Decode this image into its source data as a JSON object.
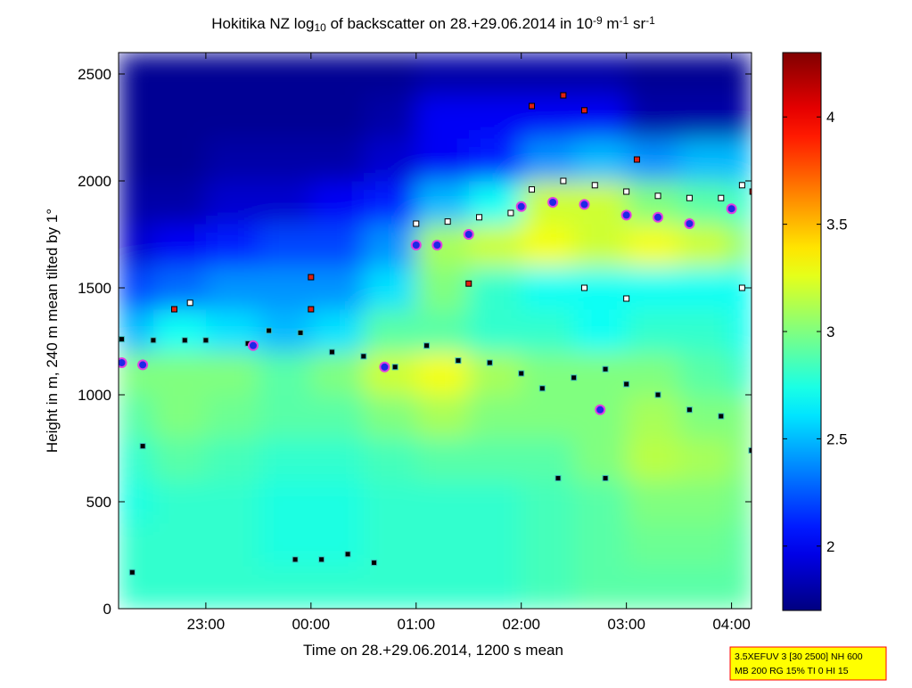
{
  "chart_data": {
    "type": "heatmap",
    "title": [
      "Hokitika NZ log",
      {
        "text": "10",
        "script": "sub"
      },
      " of backscatter on 28.+29.06.2014 in 10",
      {
        "text": "-9",
        "script": "sup"
      },
      " m",
      {
        "text": "-1",
        "script": "sup"
      },
      " sr",
      {
        "text": "-1",
        "script": "sup"
      }
    ],
    "xlabel": "Time on 28.+29.06.2014, 1200 s mean",
    "ylabel": "Height in m, 240 m mean tilted by 1°",
    "xlim": [
      22.17,
      28.19
    ],
    "ylim": [
      0,
      2600
    ],
    "xticks": [
      {
        "value": 23,
        "label": "23:00"
      },
      {
        "value": 24,
        "label": "00:00"
      },
      {
        "value": 25,
        "label": "01:00"
      },
      {
        "value": 26,
        "label": "02:00"
      },
      {
        "value": 27,
        "label": "03:00"
      },
      {
        "value": 28,
        "label": "04:00"
      }
    ],
    "yticks": [
      0,
      500,
      1000,
      1500,
      2000,
      2500
    ],
    "x_edges": [
      22.17,
      22.5,
      23,
      23.5,
      24,
      24.5,
      25,
      25.5,
      26,
      26.5,
      27,
      27.5,
      28,
      28.19
    ],
    "y_edges": [
      0,
      200,
      400,
      600,
      800,
      1000,
      1200,
      1400,
      1600,
      1800,
      2000,
      2200,
      2400,
      2600
    ],
    "z": [
      [
        2.8,
        2.8,
        2.8,
        2.8,
        2.8,
        2.8,
        2.8,
        2.8,
        2.85,
        2.9,
        2.9,
        2.9,
        2.9
      ],
      [
        2.8,
        2.8,
        2.8,
        2.75,
        2.75,
        2.8,
        2.8,
        2.8,
        2.85,
        2.9,
        2.95,
        2.95,
        2.9
      ],
      [
        2.75,
        2.8,
        2.8,
        2.75,
        2.75,
        2.8,
        2.8,
        2.8,
        2.85,
        2.9,
        3.0,
        3.0,
        2.95
      ],
      [
        2.8,
        2.9,
        2.85,
        2.8,
        2.8,
        2.85,
        2.9,
        2.9,
        2.9,
        3.0,
        3.15,
        3.1,
        3.0
      ],
      [
        2.9,
        3.0,
        2.95,
        2.9,
        2.9,
        3.0,
        3.1,
        3.0,
        3.0,
        3.0,
        3.1,
        3.0,
        3.0
      ],
      [
        3.0,
        3.0,
        3.0,
        2.9,
        3.0,
        3.2,
        3.3,
        3.1,
        3.0,
        3.0,
        3.0,
        2.9,
        2.8
      ],
      [
        2.5,
        2.7,
        2.6,
        2.5,
        2.6,
        2.9,
        2.9,
        2.8,
        2.8,
        2.7,
        2.8,
        2.8,
        2.7
      ],
      [
        2.2,
        2.3,
        2.4,
        2.4,
        2.4,
        2.6,
        3.0,
        2.8,
        2.7,
        2.7,
        2.7,
        2.7,
        2.7
      ],
      [
        1.9,
        2.0,
        2.1,
        2.2,
        2.2,
        2.4,
        3.1,
        3.2,
        3.3,
        3.2,
        3.3,
        3.2,
        3.0
      ],
      [
        1.8,
        1.8,
        1.9,
        1.9,
        2.0,
        2.1,
        2.5,
        2.7,
        3.2,
        3.2,
        3.0,
        2.9,
        2.8
      ],
      [
        1.75,
        1.75,
        1.8,
        1.8,
        1.8,
        1.9,
        2.0,
        2.1,
        2.4,
        2.5,
        2.4,
        2.5,
        2.5
      ],
      [
        1.75,
        1.75,
        1.75,
        1.75,
        1.75,
        1.8,
        2.0,
        2.0,
        2.0,
        2.0,
        1.8,
        1.8,
        1.8
      ],
      [
        1.75,
        1.75,
        1.75,
        1.75,
        1.75,
        1.75,
        1.8,
        1.8,
        1.8,
        1.8,
        1.75,
        1.75,
        1.75
      ]
    ],
    "clim": [
      1.7,
      4.3
    ],
    "cticks": [
      2,
      2.5,
      3,
      3.5,
      4
    ],
    "colormap": "jet",
    "series": [
      {
        "marker": "square",
        "color": "#000000",
        "edgecolor": "#40c0c0",
        "x": [
          22.2,
          22.5,
          22.8,
          23.0,
          23.4,
          23.6,
          23.9,
          24.2,
          24.5,
          24.8,
          25.1,
          25.4,
          25.7,
          26.0,
          26.2,
          26.5,
          26.8,
          27.0,
          27.3,
          27.6,
          27.9,
          28.19
        ],
        "values": [
          1260,
          1255,
          1255,
          1255,
          1240,
          1300,
          1290,
          1200,
          1180,
          1130,
          1230,
          1160,
          1150,
          1100,
          1030,
          1080,
          1120,
          1050,
          1000,
          930,
          900,
          740
        ]
      },
      {
        "marker": "square",
        "color": "#000000",
        "edgecolor": "#40c0c0",
        "x": [
          23.85,
          24.1,
          24.35,
          24.6,
          22.3,
          22.4,
          26.35,
          26.8
        ],
        "values": [
          230,
          230,
          255,
          215,
          170,
          760,
          610,
          610
        ]
      },
      {
        "marker": "square",
        "color": "#ffffff",
        "edgecolor": "#000000",
        "x": [
          25.0,
          25.3,
          25.6,
          25.9,
          26.1,
          26.4,
          26.7,
          27.0,
          27.3,
          27.6,
          27.9,
          28.1,
          22.85,
          26.6,
          27.0,
          28.1
        ],
        "values": [
          1800,
          1810,
          1830,
          1850,
          1960,
          2000,
          1980,
          1950,
          1930,
          1920,
          1920,
          1980,
          1430,
          1500,
          1450,
          1500
        ]
      },
      {
        "marker": "circle",
        "color": "#1e28e6",
        "edgecolor": "#e040e0",
        "x": [
          22.2,
          22.4,
          23.45,
          24.7,
          25.0,
          25.2,
          25.5,
          26.0,
          26.3,
          26.6,
          26.75,
          27.0,
          27.3,
          27.6,
          28.0
        ],
        "values": [
          1150,
          1140,
          1230,
          1130,
          1700,
          1700,
          1750,
          1880,
          1900,
          1890,
          930,
          1840,
          1830,
          1800,
          1870
        ]
      },
      {
        "marker": "square",
        "color": "#e02010",
        "edgecolor": "#000000",
        "x": [
          24.0,
          24.0,
          22.7,
          26.1,
          26.4,
          26.6,
          27.1,
          28.2,
          25.5
        ],
        "values": [
          1550,
          1400,
          1400,
          2350,
          2400,
          2330,
          2100,
          1950,
          1520
        ]
      }
    ],
    "annotation": [
      "3.5XEFUV 3 [30 2500] NH 600",
      "MB 200 RG 15% TI 0 HI 15"
    ]
  }
}
